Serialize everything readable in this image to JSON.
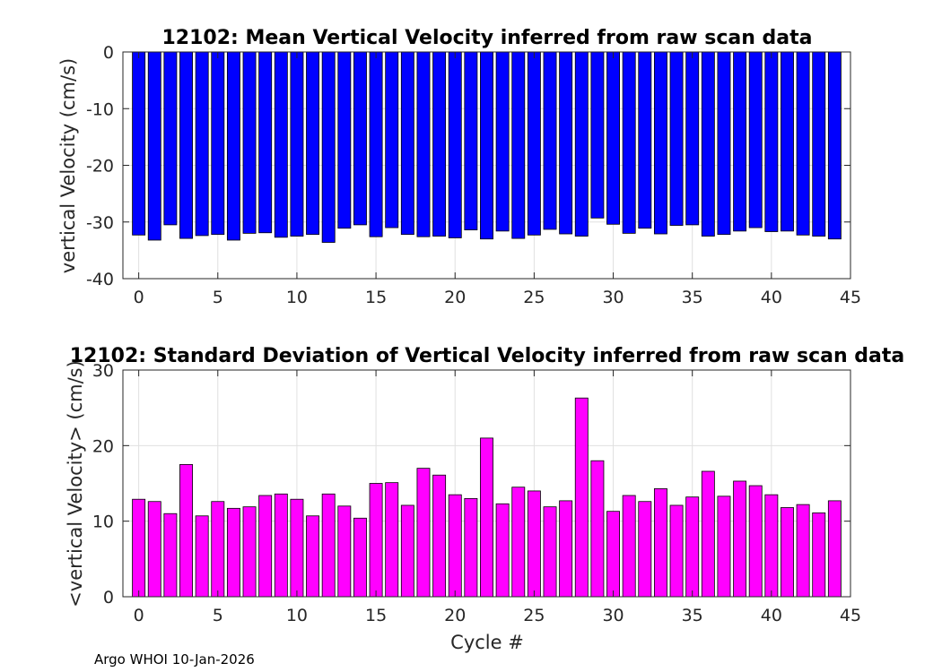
{
  "chart_data": [
    {
      "type": "bar",
      "title": "12102: Mean Vertical Velocity inferred from raw scan data",
      "xlabel": "",
      "ylabel": "vertical Velocity (cm/s)",
      "xlim": [
        -1,
        45
      ],
      "ylim": [
        -40,
        0
      ],
      "xticks": [
        0,
        5,
        10,
        15,
        20,
        25,
        30,
        35,
        40,
        45
      ],
      "yticks": [
        -40,
        -30,
        -20,
        -10,
        0
      ],
      "grid": true,
      "bar_color": "#0000ff",
      "x": [
        0,
        1,
        2,
        3,
        4,
        5,
        6,
        7,
        8,
        9,
        10,
        11,
        12,
        13,
        14,
        15,
        16,
        17,
        18,
        19,
        20,
        21,
        22,
        23,
        24,
        25,
        26,
        27,
        28,
        29,
        30,
        31,
        32,
        33,
        34,
        35,
        36,
        37,
        38,
        39,
        40,
        41,
        42,
        43,
        44
      ],
      "values": [
        -32.3,
        -33.2,
        -30.5,
        -32.9,
        -32.4,
        -32.2,
        -33.2,
        -32.0,
        -31.9,
        -32.7,
        -32.5,
        -32.2,
        -33.6,
        -31.1,
        -30.5,
        -32.6,
        -31.0,
        -32.2,
        -32.6,
        -32.5,
        -32.8,
        -31.4,
        -33.0,
        -31.6,
        -32.9,
        -32.3,
        -31.3,
        -32.1,
        -32.5,
        -29.3,
        -30.4,
        -32.0,
        -31.1,
        -32.1,
        -30.6,
        -30.5,
        -32.5,
        -32.2,
        -31.6,
        -31.0,
        -31.7,
        -31.6,
        -32.3,
        -32.5,
        -33.0
      ]
    },
    {
      "type": "bar",
      "title": "12102: Standard Deviation of Vertical Velocity inferred from raw scan data",
      "xlabel": "Cycle #",
      "ylabel": "<vertical Velocity> (cm/s)",
      "xlim": [
        -1,
        45
      ],
      "ylim": [
        0,
        30
      ],
      "xticks": [
        0,
        5,
        10,
        15,
        20,
        25,
        30,
        35,
        40,
        45
      ],
      "yticks": [
        0,
        10,
        20,
        30
      ],
      "grid": true,
      "bar_color": "#ff00ff",
      "x": [
        0,
        1,
        2,
        3,
        4,
        5,
        6,
        7,
        8,
        9,
        10,
        11,
        12,
        13,
        14,
        15,
        16,
        17,
        18,
        19,
        20,
        21,
        22,
        23,
        24,
        25,
        26,
        27,
        28,
        29,
        30,
        31,
        32,
        33,
        34,
        35,
        36,
        37,
        38,
        39,
        40,
        41,
        42,
        43,
        44
      ],
      "values": [
        12.9,
        12.6,
        11.0,
        17.5,
        10.7,
        12.6,
        11.7,
        11.9,
        13.4,
        13.6,
        12.9,
        10.7,
        13.6,
        12.0,
        10.4,
        15.0,
        15.1,
        12.1,
        17.0,
        16.1,
        13.5,
        13.0,
        21.0,
        12.3,
        14.5,
        14.0,
        11.9,
        12.7,
        26.3,
        18.0,
        11.3,
        13.4,
        12.6,
        14.3,
        12.1,
        13.2,
        16.6,
        13.3,
        15.3,
        14.7,
        13.5,
        11.8,
        12.2,
        11.1,
        12.7
      ]
    }
  ],
  "footer": "Argo WHOI 10-Jan-2026"
}
